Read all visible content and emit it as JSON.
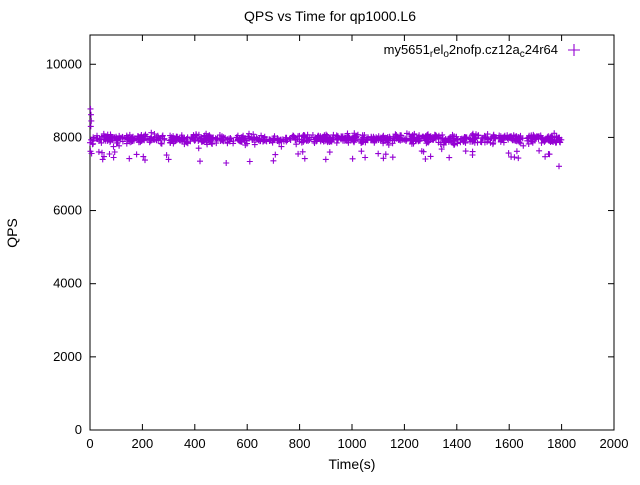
{
  "window": {
    "title": "QPS vs Time for qp1000.L6"
  },
  "chart_data": {
    "type": "scatter",
    "title": "QPS vs Time for qp1000.L6",
    "xlabel": "Time(s)",
    "ylabel": "QPS",
    "xlim": [
      0,
      2000
    ],
    "ylim": [
      0,
      10800
    ],
    "xticks": [
      0,
      200,
      400,
      600,
      800,
      1000,
      1200,
      1400,
      1600,
      1800,
      2000
    ],
    "yticks": [
      0,
      2000,
      4000,
      6000,
      8000,
      10000
    ],
    "grid": false,
    "legend": {
      "position": "top-right-inside",
      "marker": "plus",
      "label_plain": "my5651_rel_o2nofp.cz12a_c24r64",
      "label_segments": [
        {
          "text": "my5651"
        },
        {
          "text": "r",
          "sub": true
        },
        {
          "text": "el"
        },
        {
          "text": "o",
          "sub": true
        },
        {
          "text": "2nofp.cz12a"
        },
        {
          "text": "c",
          "sub": true
        },
        {
          "text": "24r64"
        }
      ]
    },
    "series": [
      {
        "name": "my5651_rel_o2nofp.cz12a_c24r64",
        "color": "#9400d3",
        "marker": "plus",
        "summary": {
          "x_start": 0,
          "x_end": 1800,
          "y_mean": 7950,
          "y_band_low": 7750,
          "y_band_high": 8150,
          "occasional_low": [
            7300,
            7600
          ],
          "point_count_estimate": 900
        },
        "band_gen": {
          "seed": 42,
          "count": 900,
          "x_min": 0,
          "x_max": 1800,
          "y_mean": 7960,
          "y_jitter": 120,
          "dip_chance": 0.07,
          "dip_min": 120,
          "dip_max": 520
        },
        "outlier_points": [
          [
            2,
            8780
          ],
          [
            4,
            8620
          ],
          [
            5,
            8450
          ],
          [
            3,
            8300
          ],
          [
            6,
            7560
          ],
          [
            2,
            7620
          ],
          [
            90,
            7450
          ],
          [
            150,
            7420
          ],
          [
            210,
            7380
          ],
          [
            300,
            7400
          ],
          [
            420,
            7350
          ],
          [
            520,
            7300
          ],
          [
            610,
            7340
          ],
          [
            700,
            7360
          ],
          [
            820,
            7420
          ],
          [
            900,
            7400
          ],
          [
            1050,
            7450
          ],
          [
            1120,
            7430
          ],
          [
            1300,
            7480
          ],
          [
            1460,
            7520
          ],
          [
            1620,
            7460
          ],
          [
            1790,
            7210
          ]
        ]
      }
    ],
    "colors": {
      "points": "#9400d3",
      "axis": "#000000",
      "background": "#ffffff"
    }
  }
}
